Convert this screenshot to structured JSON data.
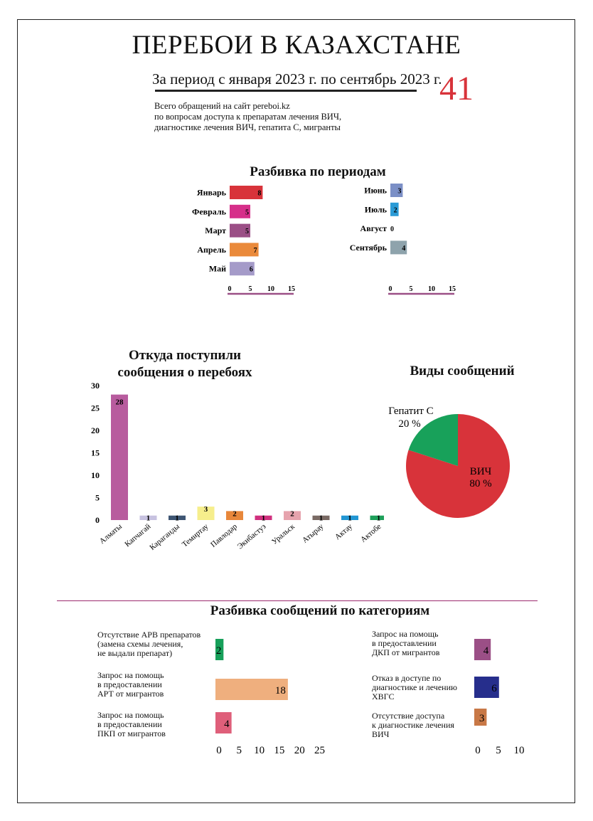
{
  "header": {
    "title": "ПЕРЕБОИ В КАЗАХСТАНЕ",
    "subtitle": "За период с января 2023 г. по сентябрь 2023 г.",
    "total": "41",
    "intro": "Всего обращений на сайт pereboi.kz\nпо вопросам доступа к препаратам лечения ВИЧ,\nдиагностике лечения ВИЧ, гепатита С, мигранты"
  },
  "chart_data": [
    {
      "id": "periods",
      "type": "bar",
      "orientation": "horizontal",
      "title": "Разбивка по периодам",
      "panels": [
        {
          "categories": [
            "Январь",
            "Февраль",
            "Март",
            "Апрель",
            "Май"
          ],
          "values": [
            8,
            5,
            5,
            7,
            6
          ],
          "colors": [
            "#d8333a",
            "#d62f8a",
            "#9b4f86",
            "#ea8a3b",
            "#a59bc9"
          ],
          "ticks": [
            0,
            5,
            10,
            15
          ],
          "xlim": [
            0,
            15
          ]
        },
        {
          "categories": [
            "Июнь",
            "Июль",
            "Август",
            "Сентябрь"
          ],
          "values": [
            3,
            2,
            0,
            4
          ],
          "colors": [
            "#7b8fc6",
            "#2b9bd6",
            "#888888",
            "#8ea3ac"
          ],
          "ticks": [
            0,
            5,
            10,
            15
          ],
          "xlim": [
            0,
            15
          ]
        }
      ]
    },
    {
      "id": "cities",
      "type": "bar",
      "title": "Откуда поступили\nсообщения о перебоях",
      "categories": [
        "Алматы",
        "Капчагай",
        "Караганды",
        "Темиртау",
        "Павлодар",
        "Экибастуз",
        "Уральск",
        "Атырау",
        "Актау",
        "Актобе"
      ],
      "values": [
        28,
        1,
        1,
        3,
        2,
        1,
        2,
        1,
        1,
        1
      ],
      "colors": [
        "#b85c9e",
        "#c7c2e0",
        "#3d5573",
        "#f6ee8c",
        "#e8873a",
        "#d0307e",
        "#e6a3ad",
        "#7a6a64",
        "#2196d3",
        "#1ea05a"
      ],
      "yticks": [
        0,
        5,
        10,
        15,
        20,
        25,
        30
      ],
      "ylim": [
        0,
        30
      ]
    },
    {
      "id": "types",
      "type": "pie",
      "title": "Виды  сообщений",
      "slices": [
        {
          "name": "ВИЧ",
          "value": 80,
          "label": "80 %",
          "color": "#d8333a"
        },
        {
          "name": "Гепатит С",
          "value": 20,
          "label": "20 %",
          "color": "#18a15a"
        }
      ]
    },
    {
      "id": "categories",
      "type": "bar",
      "orientation": "horizontal",
      "title": "Разбивка сообщений по категориям",
      "panels": [
        {
          "categories": [
            "Отсутствие АРВ препаратов\n(замена схемы лечения,\nне выдали препарат)",
            "Запрос на помощь\nв предоставлении\nАРТ от мигрантов",
            "Запрос на помощь\nв предоставлении\nПКП от мигрантов"
          ],
          "values": [
            2,
            18,
            4
          ],
          "colors": [
            "#17a05a",
            "#efaf7e",
            "#df5f7a"
          ],
          "ticks": [
            0,
            5,
            10,
            15,
            20,
            25
          ],
          "xlim": [
            0,
            25
          ]
        },
        {
          "categories": [
            "Запрос на помощь\nв предоставлении\nДКП от мигрантов",
            "Отказ в доступе по\nдиагностике и лечению\nХВГС",
            "Отсутствие доступа\nк диагностике лечения\nВИЧ"
          ],
          "values": [
            4,
            6,
            3
          ],
          "colors": [
            "#9b4f86",
            "#262e8c",
            "#c87846"
          ],
          "ticks": [
            0,
            5,
            10
          ],
          "xlim": [
            0,
            10
          ]
        }
      ]
    }
  ]
}
